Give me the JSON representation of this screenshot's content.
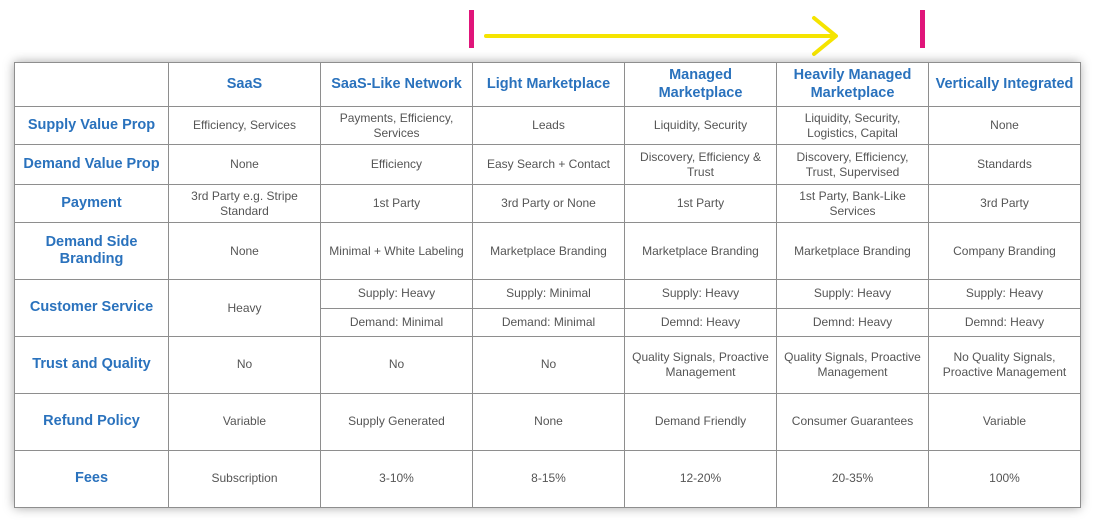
{
  "columns": [
    "SaaS",
    "SaaS-Like Network",
    "Light Marketplace",
    "Managed Marketplace",
    "Heavily Managed Marketplace",
    "Vertically Integrated"
  ],
  "rows": {
    "supply_value_prop": {
      "label": "Supply Value Prop",
      "cells": [
        "Efficiency, Services",
        "Payments, Efficiency, Services",
        "Leads",
        "Liquidity, Security",
        "Liquidity, Security, Logistics, Capital",
        "None"
      ]
    },
    "demand_value_prop": {
      "label": "Demand Value Prop",
      "cells": [
        "None",
        "Efficiency",
        "Easy Search + Contact",
        "Discovery, Efficiency & Trust",
        "Discovery, Efficiency, Trust, Supervised",
        "Standards"
      ]
    },
    "payment": {
      "label": "Payment",
      "cells": [
        "3rd Party e.g. Stripe Standard",
        "1st Party",
        "3rd Party or None",
        "1st Party",
        "1st Party, Bank-Like Services",
        "3rd Party"
      ]
    },
    "demand_side_branding": {
      "label": "Demand Side Branding",
      "cells": [
        "None",
        "Minimal + White Labeling",
        "Marketplace Branding",
        "Marketplace Branding",
        "Marketplace Branding",
        "Company Branding"
      ]
    },
    "customer_service": {
      "label": "Customer Service",
      "saas": "Heavy",
      "supply": [
        "Supply: Heavy",
        "Supply: Minimal",
        "Supply: Heavy",
        "Supply: Heavy",
        "Supply: Heavy"
      ],
      "demand": [
        "Demand: Minimal",
        "Demand: Minimal",
        "Demnd: Heavy",
        "Demnd: Heavy",
        "Demnd: Heavy"
      ]
    },
    "trust_and_quality": {
      "label": "Trust and Quality",
      "cells": [
        "No",
        "No",
        "No",
        "Quality Signals, Proactive Management",
        "Quality Signals, Proactive Management",
        "No Quality Signals, Proactive Management"
      ]
    },
    "refund_policy": {
      "label": "Refund Policy",
      "cells": [
        "Variable",
        "Supply Generated",
        "None",
        "Demand Friendly",
        "Consumer Guarantees",
        "Variable"
      ]
    },
    "fees": {
      "label": "Fees",
      "cells": [
        "Subscription",
        "3-10%",
        "8-15%",
        "12-20%",
        "20-35%",
        "100%"
      ]
    }
  },
  "colors": {
    "header_text": "#2a72bd",
    "cell_text": "#555555",
    "grid": "#8e8e8e",
    "arrow": "#f5e400",
    "markers": "#e0157a"
  }
}
